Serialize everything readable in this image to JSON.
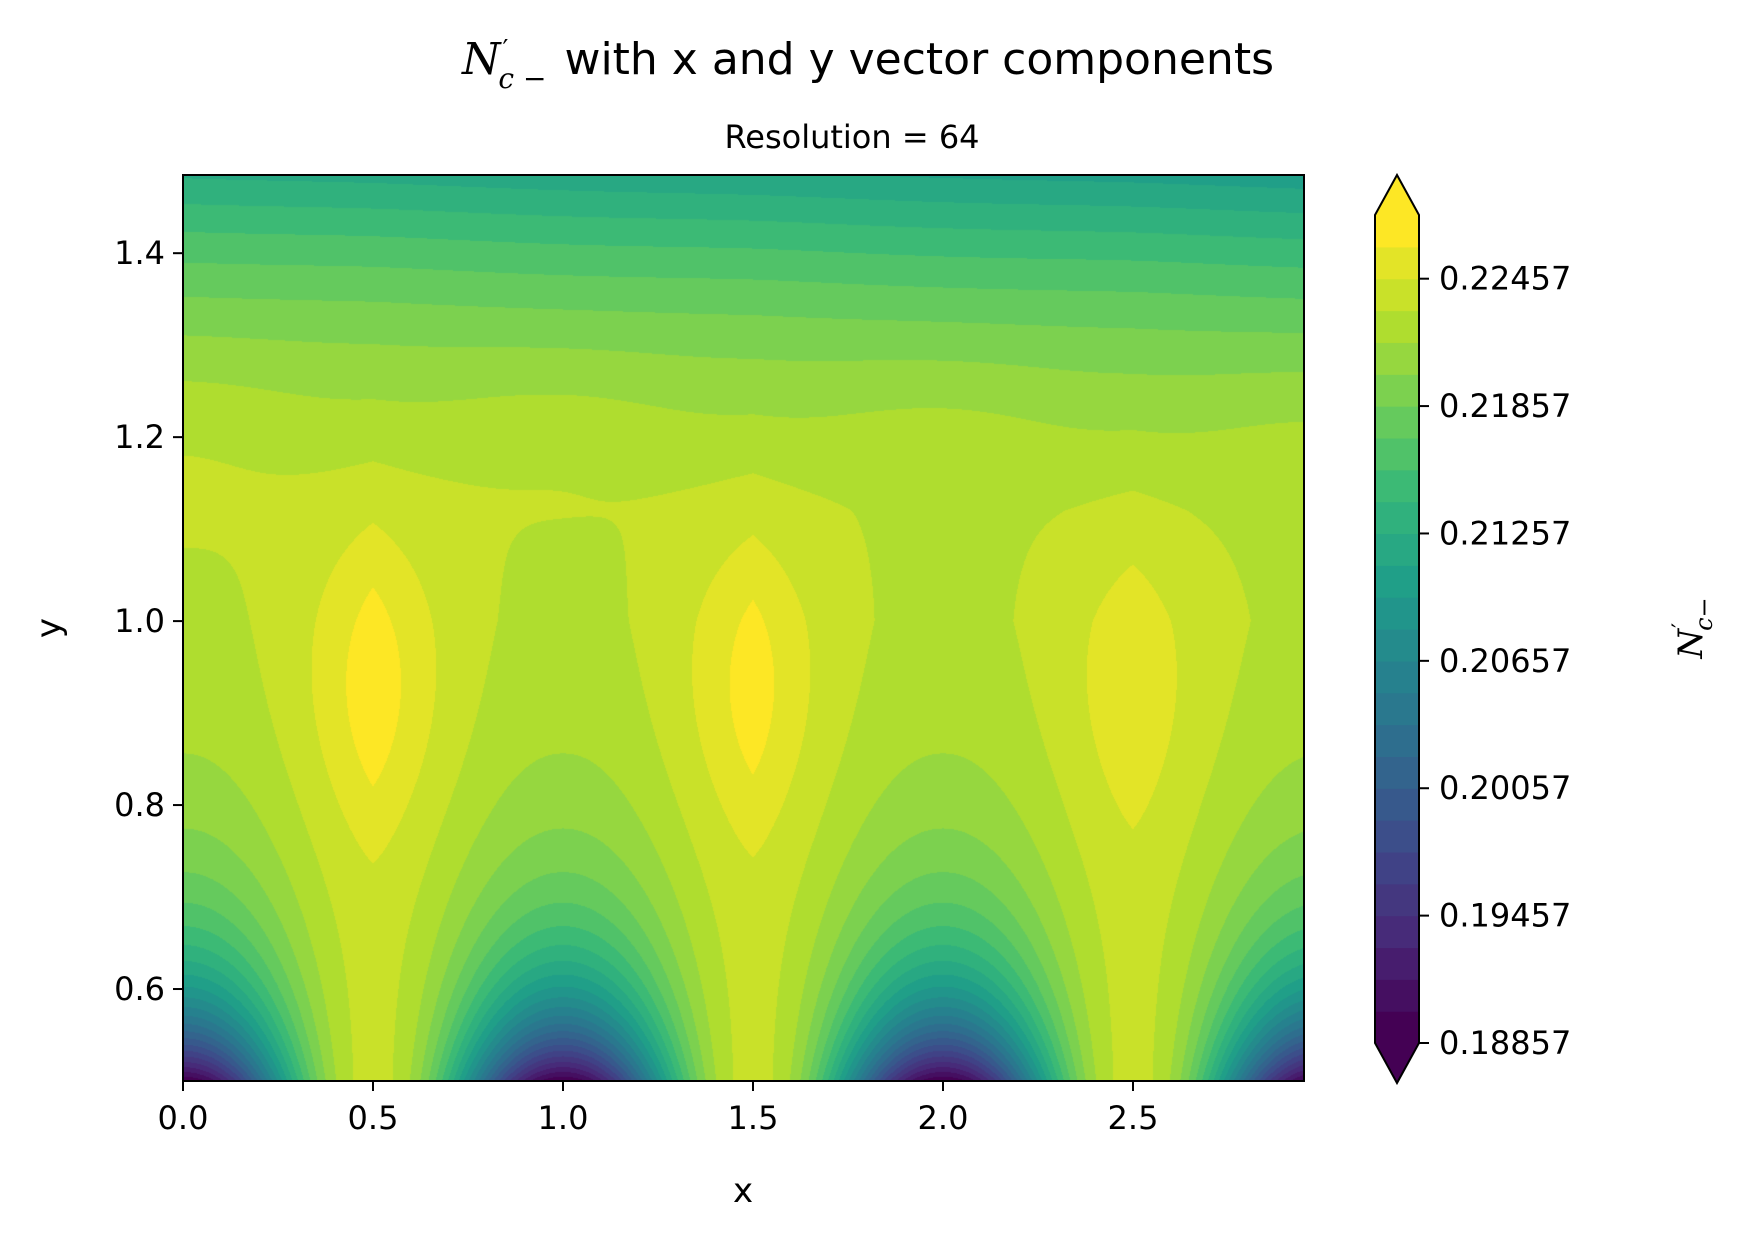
{
  "chart_data": {
    "type": "heatmap",
    "subtype": "filled-contour",
    "title_symbol": "N",
    "title_symbol_sup": "′",
    "title_symbol_sub": "c −",
    "title_text": "with x and y vector components",
    "subtitle": "Resolution = 64",
    "xlabel": "x",
    "ylabel": "y",
    "xlim": [
      0.0,
      2.95
    ],
    "ylim": [
      0.5,
      1.485
    ],
    "xticks": [
      "0.0",
      "0.5",
      "1.0",
      "1.5",
      "2.0",
      "2.5"
    ],
    "xtick_values": [
      0.0,
      0.5,
      1.0,
      1.5,
      2.0,
      2.5
    ],
    "yticks": [
      "0.6",
      "0.8",
      "1.0",
      "1.2",
      "1.4"
    ],
    "ytick_values": [
      0.6,
      0.8,
      1.0,
      1.2,
      1.4
    ],
    "colormap": "viridis",
    "colorbar": {
      "label_symbol": "N",
      "label_sup": "′",
      "label_sub": "c−",
      "extend": "both",
      "range": [
        0.18857,
        0.22757
      ],
      "levels": 26,
      "ticks": [
        "0.18857",
        "0.19457",
        "0.20057",
        "0.20657",
        "0.21257",
        "0.21857",
        "0.22457"
      ],
      "tick_values": [
        0.18857,
        0.19457,
        0.20057,
        0.20657,
        0.21257,
        0.21857,
        0.22457
      ]
    },
    "field": {
      "description_ref": "periodic",
      "period_x": 2.0,
      "minima_at_bottom_x": [
        0.0,
        1.0,
        2.0,
        2.95
      ],
      "min_value": 0.1886,
      "max_value": 0.2265,
      "plateau_value": 0.2235,
      "top_edge_value": 0.217
    },
    "grid": false
  },
  "colors": {
    "viridis_stops": [
      "#440154",
      "#482878",
      "#3e4989",
      "#31688e",
      "#26828e",
      "#1f9e89",
      "#35b779",
      "#6ece58",
      "#b5de2b",
      "#fde725"
    ]
  }
}
